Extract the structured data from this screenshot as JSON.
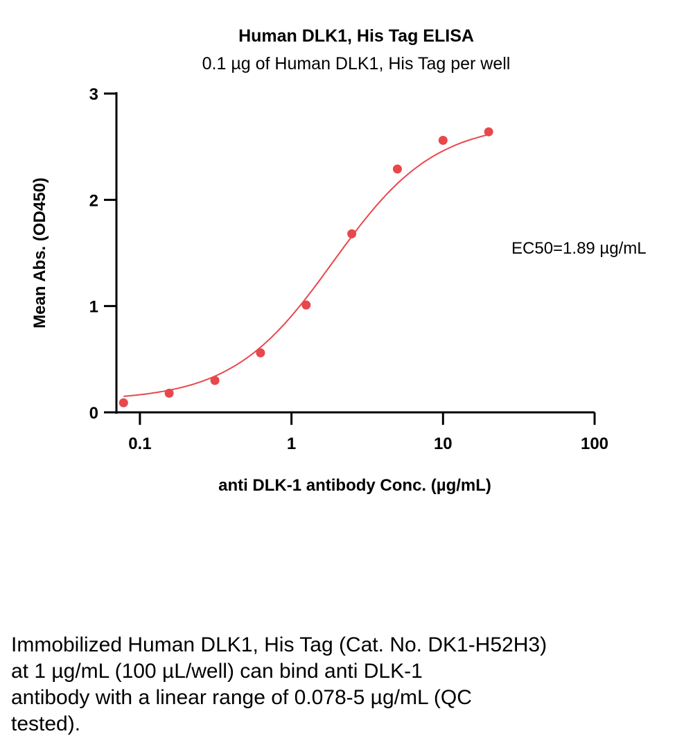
{
  "chart_data": {
    "type": "scatter",
    "title": "Human DLK1, His Tag ELISA",
    "subtitle": "0.1 µg of Human DLK1, His Tag per well",
    "xlabel": "anti DLK-1 antibody Conc. (µg/mL)",
    "ylabel": "Mean Abs. (OD450)",
    "xscale": "log",
    "xlim": [
      0.07,
      100
    ],
    "ylim": [
      0,
      3
    ],
    "xticks": [
      0.1,
      1,
      10,
      100
    ],
    "xtick_labels": [
      "0.1",
      "1",
      "10",
      "100"
    ],
    "yticks": [
      0,
      1,
      2,
      3
    ],
    "ytick_labels": [
      "0",
      "1",
      "2",
      "3"
    ],
    "grid": false,
    "color": "#e8474b",
    "points": {
      "x": [
        0.078,
        0.156,
        0.3125,
        0.625,
        1.25,
        2.5,
        5,
        10,
        20
      ],
      "y": [
        0.09,
        0.18,
        0.3,
        0.56,
        1.01,
        1.68,
        2.29,
        2.56,
        2.64
      ]
    },
    "fit": {
      "model": "4PL",
      "bottom": 0.11,
      "top": 2.73,
      "ec50": 1.89,
      "hill": 1.3
    },
    "annotation": "EC50=1.89 µg/mL"
  },
  "caption": [
    "Immobilized Human DLK1, His Tag (Cat. No. DK1-H52H3)",
    "at 1 µg/mL (100 µL/well) can bind anti DLK-1",
    "antibody with a linear range of 0.078-5 µg/mL (QC",
    "tested)."
  ]
}
